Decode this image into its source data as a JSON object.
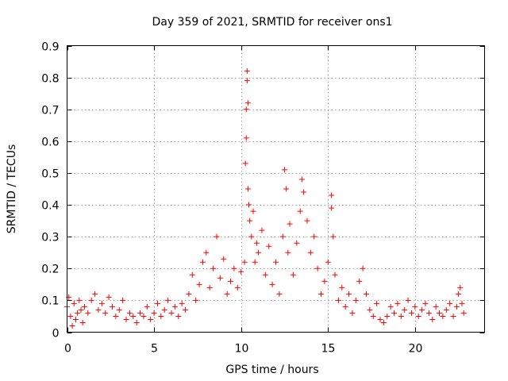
{
  "chart_data": {
    "type": "scatter",
    "title": "Day 359 of 2021, SRMTID for receiver ons1",
    "xlabel": "GPS time / hours",
    "ylabel": "SRMTID / TECUs",
    "xlim": [
      0,
      24
    ],
    "ylim": [
      0,
      0.9
    ],
    "x_ticks": [
      0,
      5,
      10,
      15,
      20
    ],
    "x_tick_labels": [
      "0",
      "5",
      "10",
      "15",
      "20"
    ],
    "y_ticks": [
      0,
      0.1,
      0.2,
      0.3,
      0.4,
      0.5,
      0.6,
      0.7,
      0.8,
      0.9
    ],
    "y_tick_labels": [
      "0",
      "0.1",
      "0.2",
      "0.3",
      "0.4",
      "0.5",
      "0.6",
      "0.7",
      "0.8",
      "0.9"
    ],
    "grid": true,
    "marker": "+",
    "color": "#ff0000",
    "series": [
      {
        "name": "SRMTID",
        "x": [
          0.0,
          0.1,
          0.2,
          0.3,
          0.4,
          0.5,
          0.6,
          0.7,
          0.8,
          0.9,
          1.0,
          1.2,
          1.4,
          1.6,
          1.8,
          2.0,
          2.2,
          2.4,
          2.6,
          2.8,
          3.0,
          3.2,
          3.4,
          3.6,
          3.8,
          4.0,
          4.2,
          4.4,
          4.6,
          4.8,
          5.0,
          5.2,
          5.4,
          5.6,
          5.8,
          6.0,
          6.2,
          6.4,
          6.6,
          6.8,
          7.0,
          7.2,
          7.4,
          7.6,
          7.8,
          8.0,
          8.2,
          8.4,
          8.6,
          8.8,
          9.0,
          9.2,
          9.4,
          9.6,
          9.8,
          10.0,
          10.2,
          10.25,
          10.3,
          10.3,
          10.35,
          10.35,
          10.4,
          10.4,
          10.45,
          10.5,
          10.6,
          10.7,
          10.8,
          10.9,
          11.0,
          11.2,
          11.4,
          11.6,
          11.8,
          12.0,
          12.2,
          12.4,
          12.5,
          12.6,
          12.7,
          12.8,
          13.0,
          13.2,
          13.4,
          13.5,
          13.6,
          13.8,
          14.0,
          14.2,
          14.4,
          14.6,
          14.8,
          15.0,
          15.2,
          15.2,
          15.3,
          15.4,
          15.6,
          15.8,
          16.0,
          16.2,
          16.4,
          16.6,
          16.8,
          17.0,
          17.2,
          17.4,
          17.6,
          17.8,
          18.0,
          18.2,
          18.4,
          18.6,
          18.8,
          19.0,
          19.2,
          19.4,
          19.6,
          19.8,
          20.0,
          20.2,
          20.4,
          20.6,
          20.8,
          21.0,
          21.2,
          21.4,
          21.6,
          21.8,
          22.0,
          22.2,
          22.4,
          22.5,
          22.6,
          22.7,
          22.8
        ],
        "y": [
          0.08,
          0.11,
          0.05,
          0.02,
          0.09,
          0.04,
          0.06,
          0.1,
          0.07,
          0.03,
          0.08,
          0.06,
          0.1,
          0.12,
          0.07,
          0.09,
          0.06,
          0.11,
          0.08,
          0.05,
          0.07,
          0.1,
          0.04,
          0.06,
          0.05,
          0.03,
          0.06,
          0.05,
          0.08,
          0.04,
          0.06,
          0.09,
          0.05,
          0.07,
          0.1,
          0.06,
          0.08,
          0.05,
          0.09,
          0.07,
          0.12,
          0.18,
          0.1,
          0.15,
          0.22,
          0.25,
          0.14,
          0.2,
          0.3,
          0.17,
          0.23,
          0.12,
          0.16,
          0.2,
          0.14,
          0.19,
          0.22,
          0.53,
          0.61,
          0.7,
          0.79,
          0.82,
          0.72,
          0.45,
          0.4,
          0.35,
          0.3,
          0.38,
          0.22,
          0.28,
          0.25,
          0.32,
          0.18,
          0.27,
          0.15,
          0.22,
          0.12,
          0.3,
          0.51,
          0.45,
          0.25,
          0.34,
          0.18,
          0.28,
          0.38,
          0.48,
          0.44,
          0.35,
          0.25,
          0.3,
          0.2,
          0.12,
          0.16,
          0.22,
          0.43,
          0.39,
          0.3,
          0.18,
          0.1,
          0.14,
          0.08,
          0.12,
          0.06,
          0.1,
          0.16,
          0.2,
          0.12,
          0.07,
          0.05,
          0.09,
          0.04,
          0.03,
          0.05,
          0.08,
          0.06,
          0.09,
          0.05,
          0.07,
          0.1,
          0.06,
          0.08,
          0.05,
          0.07,
          0.09,
          0.06,
          0.04,
          0.08,
          0.06,
          0.05,
          0.07,
          0.09,
          0.05,
          0.08,
          0.12,
          0.14,
          0.09,
          0.06
        ]
      }
    ]
  }
}
